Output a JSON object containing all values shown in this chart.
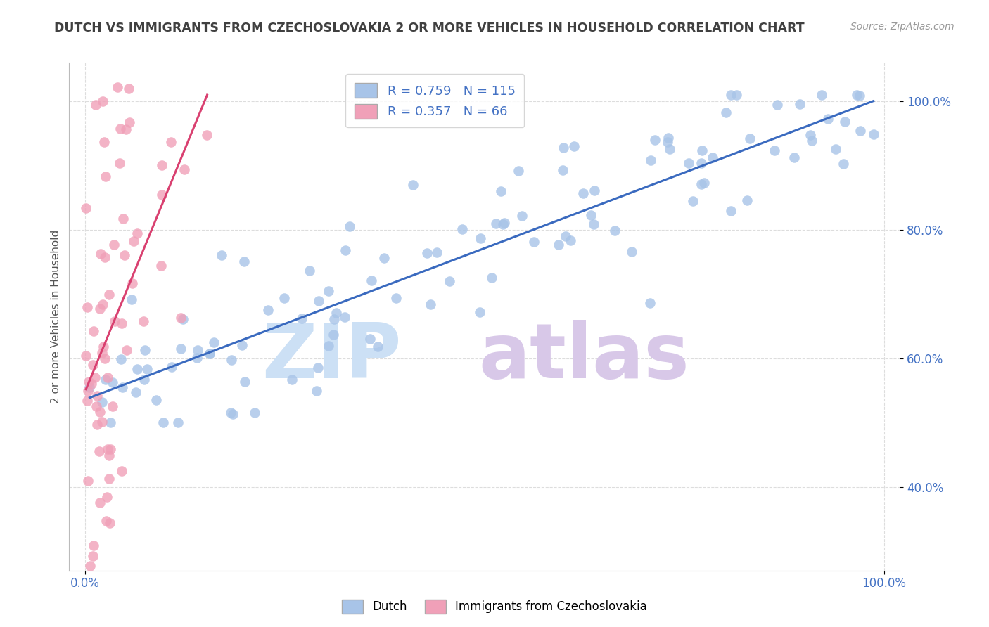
{
  "title": "DUTCH VS IMMIGRANTS FROM CZECHOSLOVAKIA 2 OR MORE VEHICLES IN HOUSEHOLD CORRELATION CHART",
  "source_text": "Source: ZipAtlas.com",
  "ylabel": "2 or more Vehicles in Household",
  "xlim": [
    -0.02,
    1.02
  ],
  "ylim": [
    0.27,
    1.06
  ],
  "xtick_positions": [
    0.0,
    1.0
  ],
  "xtick_labels": [
    "0.0%",
    "100.0%"
  ],
  "ytick_positions": [
    0.4,
    0.6,
    0.8,
    1.0
  ],
  "ytick_labels": [
    "40.0%",
    "60.0%",
    "80.0%",
    "100.0%"
  ],
  "dutch_color": "#a8c4e8",
  "czech_color": "#f0a0b8",
  "dutch_line_color": "#3a6abf",
  "czech_line_color": "#d94070",
  "dutch_R": 0.759,
  "dutch_N": 115,
  "czech_R": 0.357,
  "czech_N": 66,
  "watermark_zip_color": "#cce0f5",
  "watermark_atlas_color": "#d8c8e8",
  "background_color": "#ffffff",
  "grid_color": "#dddddd",
  "title_color": "#404040",
  "legend_label1": "Dutch",
  "legend_label2": "Immigrants from Czechoslovakia"
}
